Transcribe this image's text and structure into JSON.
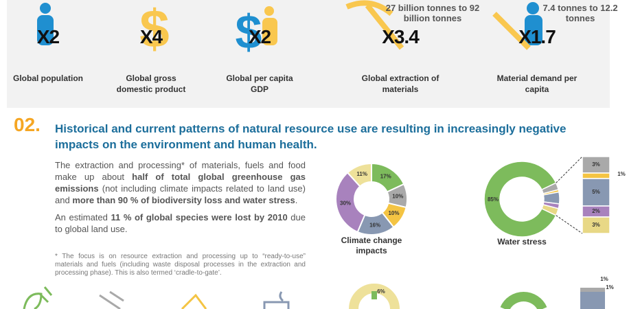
{
  "top_panel": {
    "items": [
      {
        "multiplier": "X2",
        "label": "Global population"
      },
      {
        "multiplier": "X4",
        "label": "Global gross domestic product"
      },
      {
        "multiplier": "X2",
        "label": "Global per capita GDP"
      },
      {
        "multiplier": "X3.4",
        "label": "Global extraction of materials",
        "note": "27 billion tonnes to 92 billion tonnes"
      },
      {
        "multiplier": "X1.7",
        "label": "Material demand per capita",
        "note": "7.4 tonnes to 12.2 tonnes"
      }
    ]
  },
  "section": {
    "number": "02.",
    "heading": "Historical and current patterns of natural resource use are resulting in increasingly negative impacts on the environment and human health.",
    "paragraphs": [
      [
        {
          "text": "The extraction and processing* of materials, fuels and food make up about ",
          "bold": false
        },
        {
          "text": "half of total global greenhouse gas emissions",
          "bold": true
        },
        {
          "text": " (not including climate impacts related to land use) and ",
          "bold": false
        },
        {
          "text": "more than 90 % of biodiversity loss and water stress",
          "bold": true
        },
        {
          "text": ".",
          "bold": false
        }
      ],
      [
        {
          "text": "An estimated ",
          "bold": false
        },
        {
          "text": "11 % of global species were lost by 2010",
          "bold": true
        },
        {
          "text": " due to global land use.",
          "bold": false
        }
      ]
    ],
    "footnote": "* The focus is on resource extraction and processing up to “ready-to-use” materials and fuels (including waste disposal processes in the extraction and processing phase). This is also termed ‘cradle-to-gate’."
  },
  "charts": [
    {
      "type": "donut",
      "title": "Climate change impacts",
      "values": [
        17,
        10,
        10,
        16,
        30,
        11
      ],
      "value_labels": [
        "17%",
        "10%",
        "10%",
        "16%",
        "30%",
        "11%"
      ],
      "colors": [
        "#7dbb5c",
        "#a9a9a9",
        "#f4c443",
        "#8898b2",
        "#a882bd",
        "#eee19a"
      ]
    },
    {
      "type": "donut-breakdown",
      "title": "Water stress",
      "values": [
        85,
        3,
        1,
        5,
        2,
        3
      ],
      "value_labels": [
        "85%",
        "3%",
        "1%",
        "5%",
        "2%",
        "3%"
      ],
      "colors": [
        "#7dbb5c",
        "#a9a9a9",
        "#f4c443",
        "#8898b2",
        "#a882bd",
        "#e8d886"
      ]
    }
  ],
  "bottom": {
    "labels": [
      "6%",
      "1%",
      "1%"
    ]
  }
}
